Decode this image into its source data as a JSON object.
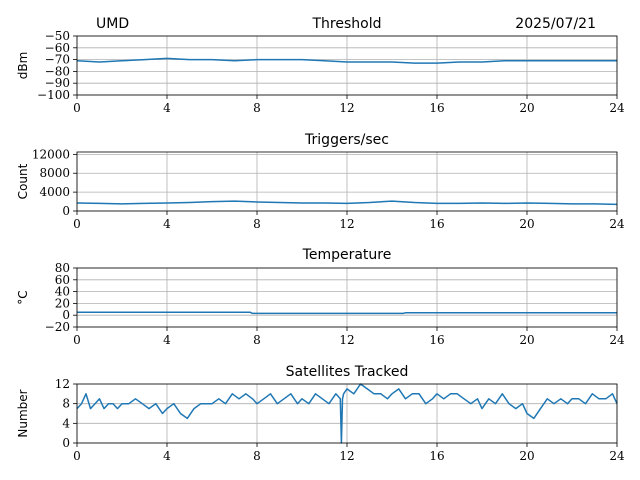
{
  "header": {
    "site": "UMD",
    "date": "2025/07/21"
  },
  "colors": {
    "series": "#1f77b4",
    "grid": "#b0b0b0"
  },
  "chart_data": [
    {
      "type": "line",
      "title": "Threshold",
      "ylabel": "dBm",
      "xlim": [
        0,
        24
      ],
      "ylim": [
        -100,
        -50
      ],
      "xticks": [
        0,
        4,
        8,
        12,
        16,
        20,
        24
      ],
      "yticks": [
        -100,
        -90,
        -80,
        -70,
        -60,
        -50
      ],
      "ytick_labels": [
        "−100",
        "−90",
        "−80",
        "−70",
        "−60",
        "−50"
      ],
      "grid": true,
      "series": [
        {
          "x": [
            0,
            1,
            2,
            3,
            4,
            5,
            6,
            7,
            8,
            9,
            10,
            11,
            12,
            13,
            14,
            15,
            16,
            17,
            18,
            19,
            20,
            21,
            22,
            23,
            24
          ],
          "values": [
            -71,
            -72,
            -71,
            -70,
            -69,
            -70,
            -70,
            -71,
            -70,
            -70,
            -70,
            -71,
            -72,
            -72,
            -72,
            -73,
            -73,
            -72,
            -72,
            -71,
            -71,
            -71,
            -71,
            -71,
            -71
          ]
        }
      ]
    },
    {
      "type": "line",
      "title": "Triggers/sec",
      "ylabel": "Count",
      "xlim": [
        0,
        24
      ],
      "ylim": [
        0,
        12500
      ],
      "xticks": [
        0,
        4,
        8,
        12,
        16,
        20,
        24
      ],
      "yticks": [
        0,
        4000,
        8000,
        12000
      ],
      "ytick_labels": [
        "0",
        "4000",
        "8000",
        "12000"
      ],
      "grid": true,
      "series": [
        {
          "x": [
            0,
            1,
            2,
            3,
            4,
            5,
            6,
            7,
            8,
            9,
            10,
            11,
            12,
            13,
            14,
            15,
            16,
            17,
            18,
            19,
            20,
            21,
            22,
            23,
            24
          ],
          "values": [
            1700,
            1600,
            1500,
            1600,
            1700,
            1800,
            2000,
            2100,
            1900,
            1800,
            1700,
            1700,
            1600,
            1800,
            2100,
            1800,
            1600,
            1600,
            1700,
            1600,
            1700,
            1600,
            1500,
            1500,
            1400
          ]
        }
      ]
    },
    {
      "type": "line",
      "title": "Temperature",
      "ylabel": "°C",
      "xlim": [
        0,
        24
      ],
      "ylim": [
        -20,
        80
      ],
      "xticks": [
        0,
        4,
        8,
        12,
        16,
        20,
        24
      ],
      "yticks": [
        -20,
        0,
        20,
        40,
        60,
        80
      ],
      "ytick_labels": [
        "−20",
        "0",
        "20",
        "40",
        "60",
        "80"
      ],
      "grid": true,
      "series": [
        {
          "x": [
            0,
            2,
            4,
            6,
            7.7,
            7.8,
            10,
            12,
            14.5,
            14.6,
            16,
            18,
            20,
            22,
            24
          ],
          "values": [
            5,
            5,
            5,
            5,
            5,
            3,
            3,
            3,
            3,
            4,
            4,
            4,
            4,
            4,
            4
          ]
        }
      ]
    },
    {
      "type": "line",
      "title": "Satellites Tracked",
      "ylabel": "Number",
      "xlim": [
        0,
        24
      ],
      "ylim": [
        0,
        12
      ],
      "xticks": [
        0,
        4,
        8,
        12,
        16,
        20,
        24
      ],
      "yticks": [
        0,
        4,
        8,
        12
      ],
      "ytick_labels": [
        "0",
        "4",
        "8",
        "12"
      ],
      "grid": true,
      "series": [
        {
          "x": [
            0,
            0.2,
            0.4,
            0.6,
            0.8,
            1,
            1.2,
            1.4,
            1.6,
            1.8,
            2,
            2.3,
            2.6,
            2.9,
            3.2,
            3.5,
            3.8,
            4,
            4.3,
            4.6,
            4.9,
            5.2,
            5.5,
            5.8,
            6,
            6.3,
            6.6,
            6.9,
            7.2,
            7.5,
            7.8,
            8,
            8.3,
            8.6,
            8.9,
            9.2,
            9.5,
            9.8,
            10,
            10.3,
            10.6,
            10.9,
            11.2,
            11.5,
            11.7,
            11.75,
            11.8,
            11.85,
            12,
            12.3,
            12.6,
            12.9,
            13.2,
            13.5,
            13.8,
            14,
            14.3,
            14.6,
            14.9,
            15.2,
            15.5,
            15.8,
            16,
            16.3,
            16.6,
            16.9,
            17.2,
            17.5,
            17.8,
            18,
            18.3,
            18.6,
            18.9,
            19.2,
            19.5,
            19.8,
            20,
            20.3,
            20.6,
            20.9,
            21.2,
            21.5,
            21.8,
            22,
            22.3,
            22.6,
            22.9,
            23.2,
            23.5,
            23.8,
            24
          ],
          "values": [
            7,
            8,
            10,
            7,
            8,
            9,
            7,
            8,
            8,
            7,
            8,
            8,
            9,
            8,
            7,
            8,
            6,
            7,
            8,
            6,
            5,
            7,
            8,
            8,
            8,
            9,
            8,
            10,
            9,
            10,
            9,
            8,
            9,
            10,
            8,
            9,
            10,
            8,
            9,
            8,
            10,
            9,
            8,
            10,
            9,
            0,
            9,
            10,
            11,
            10,
            12,
            11,
            10,
            10,
            9,
            10,
            11,
            9,
            10,
            10,
            8,
            9,
            10,
            9,
            10,
            10,
            9,
            8,
            9,
            7,
            9,
            8,
            10,
            8,
            7,
            8,
            6,
            5,
            7,
            9,
            8,
            9,
            8,
            9,
            9,
            8,
            10,
            9,
            9,
            10,
            8
          ]
        }
      ]
    }
  ]
}
